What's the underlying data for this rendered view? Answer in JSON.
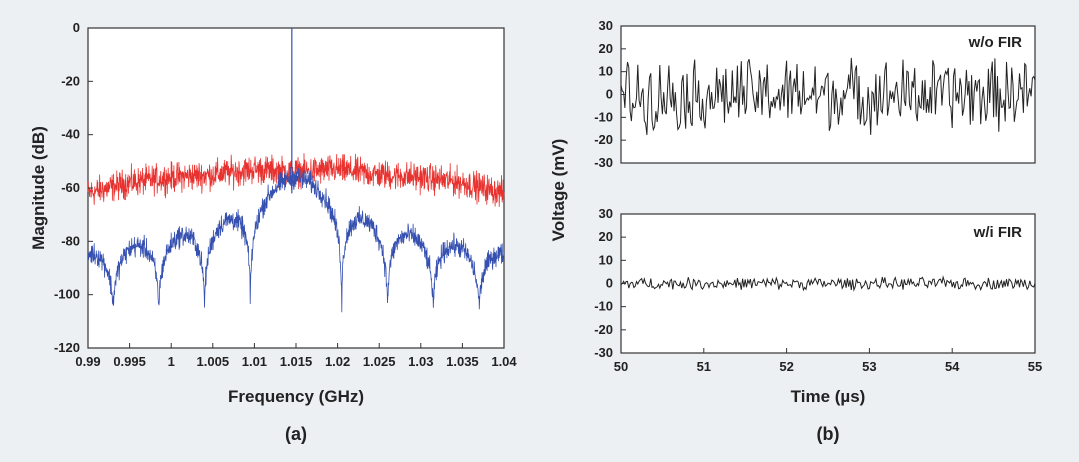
{
  "chart_data": [
    {
      "type": "line",
      "panel_label": "(a)",
      "xlabel": "Frequency (GHz)",
      "ylabel": "Magnitude (dB)",
      "xlim": [
        0.99,
        1.04
      ],
      "ylim": [
        -120,
        0
      ],
      "xticks": [
        0.99,
        0.995,
        1,
        1.005,
        1.01,
        1.015,
        1.02,
        1.025,
        1.03,
        1.035,
        1.04
      ],
      "xtick_labels": [
        "0.99",
        "0.995",
        "1",
        "1.005",
        "1.01",
        "1.015",
        "1.02",
        "1.025",
        "1.03",
        "1.035",
        "1.04"
      ],
      "yticks": [
        0,
        -20,
        -40,
        -60,
        -80,
        -100,
        -120
      ],
      "ytick_labels": [
        "0",
        "-20",
        "-40",
        "-60",
        "-80",
        "-100",
        "-120"
      ],
      "grid": false,
      "series": [
        {
          "color": "#e8322f",
          "description_points": {
            "x": [
              0.99,
              0.995,
              1.0,
              1.005,
              1.01,
              1.015,
              1.02,
              1.025,
              1.03,
              1.035,
              1.04
            ],
            "y": [
              -62,
              -58,
              -56,
              -55,
              -53,
              -54,
              -53,
              -55,
              -56,
              -58,
              -62
            ]
          },
          "noise_amplitude_db": 8
        },
        {
          "color": "#3550b0",
          "sinc_center": 1.015,
          "main_lobe_peak_db": -50,
          "null_spacing_ghz": 0.0055,
          "null_depth_db": -105,
          "tone": {
            "x": 1.0145,
            "y": 0
          }
        }
      ]
    },
    {
      "type": "line",
      "panel_label": "(b)",
      "xlabel": "Time (µs)",
      "ylabel": "Voltage (mV)",
      "xlim": [
        50,
        55
      ],
      "xticks": [
        50,
        51,
        52,
        53,
        54,
        55
      ],
      "xtick_labels": [
        "50",
        "51",
        "52",
        "53",
        "54",
        "55"
      ],
      "grid": false,
      "subplots": [
        {
          "annotation": "w/o FIR",
          "ylim": [
            -30,
            30
          ],
          "yticks": [
            30,
            20,
            10,
            0,
            -10,
            -20,
            -30
          ],
          "ytick_labels": [
            "30",
            "20",
            "10",
            "0",
            "-10",
            "-20",
            "-30"
          ],
          "signal_amplitude_mv": 18,
          "color": "#222222"
        },
        {
          "annotation": "w/i FIR",
          "ylim": [
            -30,
            30
          ],
          "yticks": [
            30,
            20,
            10,
            0,
            -10,
            -20,
            -30
          ],
          "ytick_labels": [
            "30",
            "20",
            "10",
            "0",
            "-10",
            "-20",
            "-30"
          ],
          "signal_amplitude_mv": 3,
          "color": "#222222"
        }
      ]
    }
  ]
}
